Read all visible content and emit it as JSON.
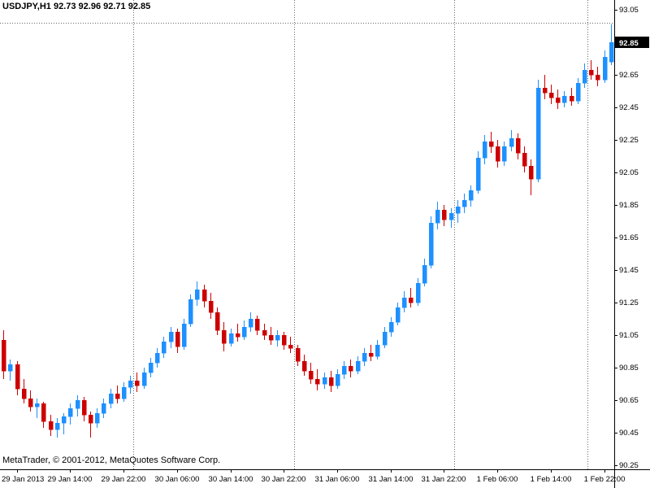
{
  "header": {
    "title": "USDJPY,H1 92.73 92.96 92.71 92.85"
  },
  "watermark": {
    "text": "MetaTrader, © 2001-2012, MetaQuotes Software Corp."
  },
  "colors": {
    "bull": "#1e90ff",
    "bear": "#cc0000",
    "grid": "#666666",
    "axis": "#000000",
    "background": "#ffffff",
    "price_box_bg": "#000000",
    "price_box_text": "#ffffff"
  },
  "chart_data": {
    "type": "candlestick",
    "symbol": "USDJPY",
    "period": "H1",
    "title": "USDJPY,H1",
    "current_bar": {
      "open": 92.73,
      "high": 92.96,
      "low": 92.71,
      "close": 92.85
    },
    "current_price": 92.85,
    "current_price_label": "92.85",
    "high_line": 92.97,
    "legend_position": "none",
    "grid": "day-separators-only",
    "y_axis": {
      "side": "right",
      "min": 90.25,
      "max": 93.05,
      "step": 0.2,
      "labels": [
        "93.05",
        "92.85",
        "92.65",
        "92.45",
        "92.25",
        "92.05",
        "91.85",
        "91.65",
        "91.45",
        "91.25",
        "91.05",
        "90.85",
        "90.65",
        "90.45",
        "90.25"
      ]
    },
    "x_labels": [
      {
        "index": 2,
        "text": "29 Jan 2013"
      },
      {
        "index": 10,
        "text": "29 Jan 14:00"
      },
      {
        "index": 18,
        "text": "29 Jan 22:00"
      },
      {
        "index": 26,
        "text": "30 Jan 06:00"
      },
      {
        "index": 34,
        "text": "30 Jan 14:00"
      },
      {
        "index": 42,
        "text": "30 Jan 22:00"
      },
      {
        "index": 50,
        "text": "31 Jan 06:00"
      },
      {
        "index": 58,
        "text": "31 Jan 14:00"
      },
      {
        "index": 66,
        "text": "31 Jan 22:00"
      },
      {
        "index": 74,
        "text": "1 Feb 06:00"
      },
      {
        "index": 82,
        "text": "1 Feb 14:00"
      },
      {
        "index": 90,
        "text": "1 Feb 22:00"
      }
    ],
    "day_separator_indices": [
      20,
      44,
      68,
      88
    ],
    "candles": [
      {
        "t": "29 Jan 04:00",
        "o": 91.02,
        "h": 91.08,
        "l": 90.78,
        "c": 90.83
      },
      {
        "t": "29 Jan 05:00",
        "o": 90.83,
        "h": 90.9,
        "l": 90.77,
        "c": 90.87
      },
      {
        "t": "29 Jan 06:00",
        "o": 90.87,
        "h": 90.89,
        "l": 90.68,
        "c": 90.72
      },
      {
        "t": "29 Jan 07:00",
        "o": 90.72,
        "h": 90.78,
        "l": 90.63,
        "c": 90.66
      },
      {
        "t": "29 Jan 08:00",
        "o": 90.66,
        "h": 90.71,
        "l": 90.58,
        "c": 90.61
      },
      {
        "t": "29 Jan 09:00",
        "o": 90.61,
        "h": 90.66,
        "l": 90.54,
        "c": 90.63
      },
      {
        "t": "29 Jan 10:00",
        "o": 90.63,
        "h": 90.64,
        "l": 90.48,
        "c": 90.52
      },
      {
        "t": "29 Jan 11:00",
        "o": 90.52,
        "h": 90.56,
        "l": 90.43,
        "c": 90.47
      },
      {
        "t": "29 Jan 12:00",
        "o": 90.47,
        "h": 90.54,
        "l": 90.42,
        "c": 90.51
      },
      {
        "t": "29 Jan 13:00",
        "o": 90.51,
        "h": 90.57,
        "l": 90.44,
        "c": 90.55
      },
      {
        "t": "29 Jan 14:00",
        "o": 90.55,
        "h": 90.63,
        "l": 90.5,
        "c": 90.6
      },
      {
        "t": "29 Jan 15:00",
        "o": 90.6,
        "h": 90.68,
        "l": 90.55,
        "c": 90.65
      },
      {
        "t": "29 Jan 16:00",
        "o": 90.65,
        "h": 90.67,
        "l": 90.52,
        "c": 90.56
      },
      {
        "t": "29 Jan 17:00",
        "o": 90.56,
        "h": 90.58,
        "l": 90.42,
        "c": 90.51
      },
      {
        "t": "29 Jan 18:00",
        "o": 90.51,
        "h": 90.6,
        "l": 90.48,
        "c": 90.57
      },
      {
        "t": "29 Jan 19:00",
        "o": 90.57,
        "h": 90.66,
        "l": 90.54,
        "c": 90.63
      },
      {
        "t": "29 Jan 20:00",
        "o": 90.63,
        "h": 90.72,
        "l": 90.6,
        "c": 90.69
      },
      {
        "t": "29 Jan 21:00",
        "o": 90.69,
        "h": 90.74,
        "l": 90.63,
        "c": 90.66
      },
      {
        "t": "29 Jan 22:00",
        "o": 90.66,
        "h": 90.76,
        "l": 90.64,
        "c": 90.73
      },
      {
        "t": "29 Jan 23:00",
        "o": 90.73,
        "h": 90.8,
        "l": 90.69,
        "c": 90.77
      },
      {
        "t": "30 Jan 00:00",
        "o": 90.77,
        "h": 90.82,
        "l": 90.7,
        "c": 90.74
      },
      {
        "t": "30 Jan 01:00",
        "o": 90.74,
        "h": 90.85,
        "l": 90.72,
        "c": 90.82
      },
      {
        "t": "30 Jan 02:00",
        "o": 90.82,
        "h": 90.91,
        "l": 90.79,
        "c": 90.88
      },
      {
        "t": "30 Jan 03:00",
        "o": 90.88,
        "h": 90.97,
        "l": 90.85,
        "c": 90.94
      },
      {
        "t": "30 Jan 04:00",
        "o": 90.94,
        "h": 91.04,
        "l": 90.91,
        "c": 91.01
      },
      {
        "t": "30 Jan 05:00",
        "o": 91.01,
        "h": 91.1,
        "l": 90.97,
        "c": 91.07
      },
      {
        "t": "30 Jan 06:00",
        "o": 91.07,
        "h": 91.09,
        "l": 90.94,
        "c": 90.98
      },
      {
        "t": "30 Jan 07:00",
        "o": 90.98,
        "h": 91.15,
        "l": 90.96,
        "c": 91.12
      },
      {
        "t": "30 Jan 08:00",
        "o": 91.12,
        "h": 91.3,
        "l": 91.1,
        "c": 91.27
      },
      {
        "t": "30 Jan 09:00",
        "o": 91.27,
        "h": 91.38,
        "l": 91.23,
        "c": 91.33
      },
      {
        "t": "30 Jan 10:00",
        "o": 91.33,
        "h": 91.36,
        "l": 91.22,
        "c": 91.26
      },
      {
        "t": "30 Jan 11:00",
        "o": 91.26,
        "h": 91.31,
        "l": 91.15,
        "c": 91.19
      },
      {
        "t": "30 Jan 12:00",
        "o": 91.19,
        "h": 91.22,
        "l": 91.05,
        "c": 91.08
      },
      {
        "t": "30 Jan 13:00",
        "o": 91.08,
        "h": 91.13,
        "l": 90.95,
        "c": 91.0
      },
      {
        "t": "30 Jan 14:00",
        "o": 91.0,
        "h": 91.09,
        "l": 90.98,
        "c": 91.06
      },
      {
        "t": "30 Jan 15:00",
        "o": 91.06,
        "h": 91.12,
        "l": 91.01,
        "c": 91.04
      },
      {
        "t": "30 Jan 16:00",
        "o": 91.04,
        "h": 91.14,
        "l": 91.02,
        "c": 91.1
      },
      {
        "t": "30 Jan 17:00",
        "o": 91.1,
        "h": 91.19,
        "l": 91.07,
        "c": 91.15
      },
      {
        "t": "30 Jan 18:00",
        "o": 91.15,
        "h": 91.17,
        "l": 91.05,
        "c": 91.08
      },
      {
        "t": "30 Jan 19:00",
        "o": 91.08,
        "h": 91.12,
        "l": 91.02,
        "c": 91.05
      },
      {
        "t": "30 Jan 20:00",
        "o": 91.05,
        "h": 91.1,
        "l": 90.99,
        "c": 91.02
      },
      {
        "t": "30 Jan 21:00",
        "o": 91.02,
        "h": 91.08,
        "l": 90.98,
        "c": 91.05
      },
      {
        "t": "30 Jan 22:00",
        "o": 91.05,
        "h": 91.07,
        "l": 90.96,
        "c": 90.99
      },
      {
        "t": "30 Jan 23:00",
        "o": 90.99,
        "h": 91.04,
        "l": 90.94,
        "c": 90.97
      },
      {
        "t": "31 Jan 00:00",
        "o": 90.97,
        "h": 90.99,
        "l": 90.86,
        "c": 90.89
      },
      {
        "t": "31 Jan 01:00",
        "o": 90.89,
        "h": 90.93,
        "l": 90.8,
        "c": 90.83
      },
      {
        "t": "31 Jan 02:00",
        "o": 90.83,
        "h": 90.88,
        "l": 90.75,
        "c": 90.78
      },
      {
        "t": "31 Jan 03:00",
        "o": 90.78,
        "h": 90.84,
        "l": 90.71,
        "c": 90.75
      },
      {
        "t": "31 Jan 04:00",
        "o": 90.75,
        "h": 90.82,
        "l": 90.72,
        "c": 90.79
      },
      {
        "t": "31 Jan 05:00",
        "o": 90.79,
        "h": 90.83,
        "l": 90.7,
        "c": 90.74
      },
      {
        "t": "31 Jan 06:00",
        "o": 90.74,
        "h": 90.84,
        "l": 90.72,
        "c": 90.81
      },
      {
        "t": "31 Jan 07:00",
        "o": 90.81,
        "h": 90.89,
        "l": 90.78,
        "c": 90.86
      },
      {
        "t": "31 Jan 08:00",
        "o": 90.86,
        "h": 90.9,
        "l": 90.79,
        "c": 90.83
      },
      {
        "t": "31 Jan 09:00",
        "o": 90.83,
        "h": 90.92,
        "l": 90.81,
        "c": 90.89
      },
      {
        "t": "31 Jan 10:00",
        "o": 90.89,
        "h": 90.97,
        "l": 90.86,
        "c": 90.94
      },
      {
        "t": "31 Jan 11:00",
        "o": 90.94,
        "h": 90.99,
        "l": 90.89,
        "c": 90.92
      },
      {
        "t": "31 Jan 12:00",
        "o": 90.92,
        "h": 91.02,
        "l": 90.9,
        "c": 90.99
      },
      {
        "t": "31 Jan 13:00",
        "o": 90.99,
        "h": 91.1,
        "l": 90.97,
        "c": 91.07
      },
      {
        "t": "31 Jan 14:00",
        "o": 91.07,
        "h": 91.16,
        "l": 91.04,
        "c": 91.13
      },
      {
        "t": "31 Jan 15:00",
        "o": 91.13,
        "h": 91.25,
        "l": 91.11,
        "c": 91.22
      },
      {
        "t": "31 Jan 16:00",
        "o": 91.22,
        "h": 91.32,
        "l": 91.19,
        "c": 91.28
      },
      {
        "t": "31 Jan 17:00",
        "o": 91.28,
        "h": 91.34,
        "l": 91.22,
        "c": 91.25
      },
      {
        "t": "31 Jan 18:00",
        "o": 91.25,
        "h": 91.4,
        "l": 91.23,
        "c": 91.37
      },
      {
        "t": "31 Jan 19:00",
        "o": 91.37,
        "h": 91.52,
        "l": 91.35,
        "c": 91.48
      },
      {
        "t": "31 Jan 20:00",
        "o": 91.48,
        "h": 91.78,
        "l": 91.46,
        "c": 91.74
      },
      {
        "t": "31 Jan 21:00",
        "o": 91.74,
        "h": 91.87,
        "l": 91.7,
        "c": 91.82
      },
      {
        "t": "31 Jan 22:00",
        "o": 91.82,
        "h": 91.85,
        "l": 91.72,
        "c": 91.76
      },
      {
        "t": "31 Jan 23:00",
        "o": 91.76,
        "h": 91.83,
        "l": 91.71,
        "c": 91.8
      },
      {
        "t": "1 Feb 00:00",
        "o": 91.8,
        "h": 91.88,
        "l": 91.74,
        "c": 91.84
      },
      {
        "t": "1 Feb 01:00",
        "o": 91.84,
        "h": 91.92,
        "l": 91.8,
        "c": 91.88
      },
      {
        "t": "1 Feb 02:00",
        "o": 91.88,
        "h": 91.97,
        "l": 91.84,
        "c": 91.94
      },
      {
        "t": "1 Feb 03:00",
        "o": 91.94,
        "h": 92.18,
        "l": 91.92,
        "c": 92.14
      },
      {
        "t": "1 Feb 04:00",
        "o": 92.14,
        "h": 92.28,
        "l": 92.1,
        "c": 92.24
      },
      {
        "t": "1 Feb 05:00",
        "o": 92.24,
        "h": 92.3,
        "l": 92.17,
        "c": 92.21
      },
      {
        "t": "1 Feb 06:00",
        "o": 92.21,
        "h": 92.25,
        "l": 92.08,
        "c": 92.12
      },
      {
        "t": "1 Feb 07:00",
        "o": 92.12,
        "h": 92.24,
        "l": 92.09,
        "c": 92.21
      },
      {
        "t": "1 Feb 08:00",
        "o": 92.21,
        "h": 92.31,
        "l": 92.18,
        "c": 92.26
      },
      {
        "t": "1 Feb 09:00",
        "o": 92.26,
        "h": 92.29,
        "l": 92.13,
        "c": 92.17
      },
      {
        "t": "1 Feb 10:00",
        "o": 92.17,
        "h": 92.21,
        "l": 92.05,
        "c": 92.09
      },
      {
        "t": "1 Feb 11:00",
        "o": 92.09,
        "h": 92.13,
        "l": 91.91,
        "c": 92.01
      },
      {
        "t": "1 Feb 12:00",
        "o": 92.01,
        "h": 92.62,
        "l": 91.99,
        "c": 92.57
      },
      {
        "t": "1 Feb 13:00",
        "o": 92.57,
        "h": 92.65,
        "l": 92.5,
        "c": 92.54
      },
      {
        "t": "1 Feb 14:00",
        "o": 92.54,
        "h": 92.59,
        "l": 92.47,
        "c": 92.51
      },
      {
        "t": "1 Feb 15:00",
        "o": 92.51,
        "h": 92.56,
        "l": 92.44,
        "c": 92.48
      },
      {
        "t": "1 Feb 16:00",
        "o": 92.48,
        "h": 92.55,
        "l": 92.45,
        "c": 92.52
      },
      {
        "t": "1 Feb 17:00",
        "o": 92.52,
        "h": 92.57,
        "l": 92.46,
        "c": 92.49
      },
      {
        "t": "1 Feb 18:00",
        "o": 92.49,
        "h": 92.63,
        "l": 92.47,
        "c": 92.6
      },
      {
        "t": "1 Feb 19:00",
        "o": 92.6,
        "h": 92.72,
        "l": 92.57,
        "c": 92.68
      },
      {
        "t": "1 Feb 20:00",
        "o": 92.68,
        "h": 92.74,
        "l": 92.62,
        "c": 92.65
      },
      {
        "t": "1 Feb 21:00",
        "o": 92.65,
        "h": 92.7,
        "l": 92.58,
        "c": 92.62
      },
      {
        "t": "1 Feb 22:00",
        "o": 92.62,
        "h": 92.8,
        "l": 92.6,
        "c": 92.76
      },
      {
        "t": "1 Feb 23:00",
        "o": 92.73,
        "h": 92.96,
        "l": 92.71,
        "c": 92.85
      }
    ]
  }
}
